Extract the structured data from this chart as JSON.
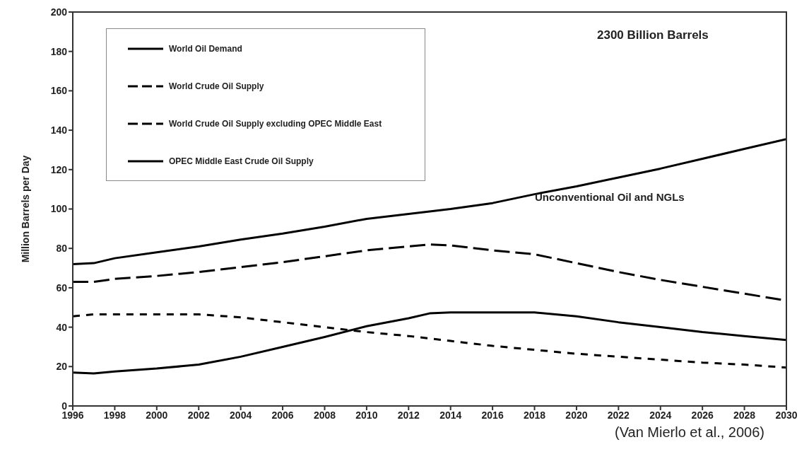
{
  "chart_data": {
    "type": "line",
    "ylabel": "Million Barrels per Day",
    "xlim": [
      1996,
      2030
    ],
    "xticks": [
      1996,
      1998,
      2000,
      2002,
      2004,
      2006,
      2008,
      2010,
      2012,
      2014,
      2016,
      2018,
      2020,
      2022,
      2024,
      2026,
      2028,
      2030
    ],
    "ylim": [
      0,
      200
    ],
    "yticks": [
      0,
      20,
      40,
      60,
      80,
      100,
      120,
      140,
      160,
      180,
      200
    ],
    "grid": false,
    "legend": "top left",
    "marker": "none",
    "annotations": [
      "2300 Billion Barrels",
      "Unconventional Oil and NGLs",
      "(Van Mierlo et al., 2006)"
    ],
    "series": [
      {
        "name": "World Oil Demand",
        "color": "#000000",
        "line_style": "solid",
        "x": [
          1996,
          1997,
          1998,
          2000,
          2002,
          2004,
          2006,
          2008,
          2010,
          2012,
          2014,
          2016,
          2018,
          2020,
          2022,
          2024,
          2026,
          2028,
          2030
        ],
        "values": [
          72,
          72.5,
          75,
          78,
          81,
          84.5,
          87.5,
          91,
          95,
          97.5,
          100,
          103,
          107.5,
          111.5,
          116,
          120.5,
          125.5,
          130.5,
          135.5
        ]
      },
      {
        "name": "World Crude Oil Supply",
        "color": "#000000",
        "line_style": "dashed",
        "x": [
          1996,
          1997,
          1998,
          2000,
          2002,
          2004,
          2006,
          2008,
          2010,
          2012,
          2013,
          2014,
          2016,
          2018,
          2020,
          2022,
          2024,
          2026,
          2028,
          2030
        ],
        "values": [
          63,
          63,
          64.5,
          66,
          68,
          70.5,
          73,
          76,
          79,
          81,
          82,
          81.5,
          79,
          77,
          72.5,
          68,
          64,
          60.5,
          57,
          53.5
        ]
      },
      {
        "name": "World Crude Oil Supply excluding OPEC Middle East",
        "color": "#000000",
        "line_style": "dotted",
        "x": [
          1996,
          1997,
          2000,
          2002,
          2004,
          2006,
          2008,
          2010,
          2012,
          2014,
          2016,
          2018,
          2020,
          2022,
          2024,
          2026,
          2028,
          2030
        ],
        "values": [
          45.5,
          46.5,
          46.5,
          46.5,
          45,
          42.5,
          40,
          37.5,
          35.5,
          33,
          30.5,
          28.5,
          26.5,
          25,
          23.5,
          22,
          21,
          19.5
        ]
      },
      {
        "name": "OPEC Middle East Crude Oil Supply",
        "color": "#000000",
        "line_style": "solid",
        "x": [
          1996,
          1997,
          1998,
          2000,
          2002,
          2004,
          2006,
          2008,
          2010,
          2012,
          2013,
          2014,
          2016,
          2018,
          2020,
          2022,
          2024,
          2026,
          2028,
          2030
        ],
        "values": [
          17,
          16.5,
          17.5,
          19,
          21,
          25,
          30,
          35,
          40.5,
          44.5,
          47,
          47.5,
          47.5,
          47.5,
          45.5,
          42.5,
          40,
          37.5,
          35.5,
          33.5
        ]
      }
    ]
  }
}
